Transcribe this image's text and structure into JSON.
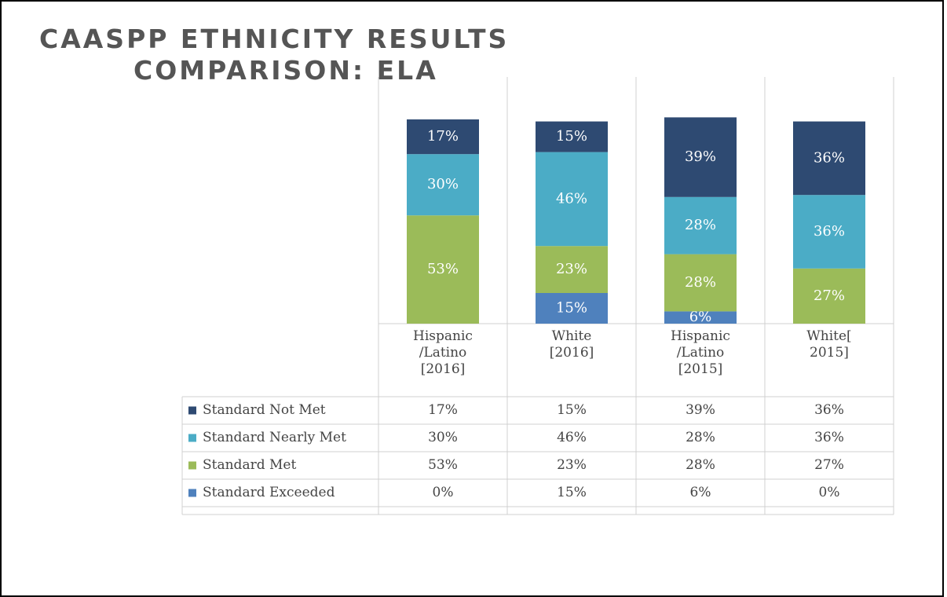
{
  "chart_data": {
    "type": "stacked_bar",
    "title": "CAASPP ETHNICITY RESULTS COMPARISON: ELA",
    "categories": [
      "Hispanic /Latino [2016]",
      "White [2016]",
      "Hispanic /Latino [2015]",
      "White[2015]"
    ],
    "ylim": [
      0,
      100
    ],
    "series": [
      {
        "name": "Standard Not Met",
        "color": "#2e4a72",
        "values": [
          17,
          15,
          39,
          36
        ],
        "value_labels": [
          "17%",
          "15%",
          "39%",
          "36%"
        ]
      },
      {
        "name": "Standard Nearly Met",
        "color": "#4bacc6",
        "values": [
          30,
          46,
          28,
          36
        ],
        "value_labels": [
          "30%",
          "46%",
          "28%",
          "36%"
        ]
      },
      {
        "name": "Standard Met",
        "color": "#9bbb59",
        "values": [
          53,
          23,
          28,
          27
        ],
        "value_labels": [
          "53%",
          "23%",
          "28%",
          "27%"
        ]
      },
      {
        "name": "Standard Exceeded",
        "color": "#4f81bd",
        "values": [
          0,
          15,
          6,
          0
        ],
        "value_labels": [
          "0%",
          "15%",
          "6%",
          "0%"
        ]
      }
    ]
  }
}
